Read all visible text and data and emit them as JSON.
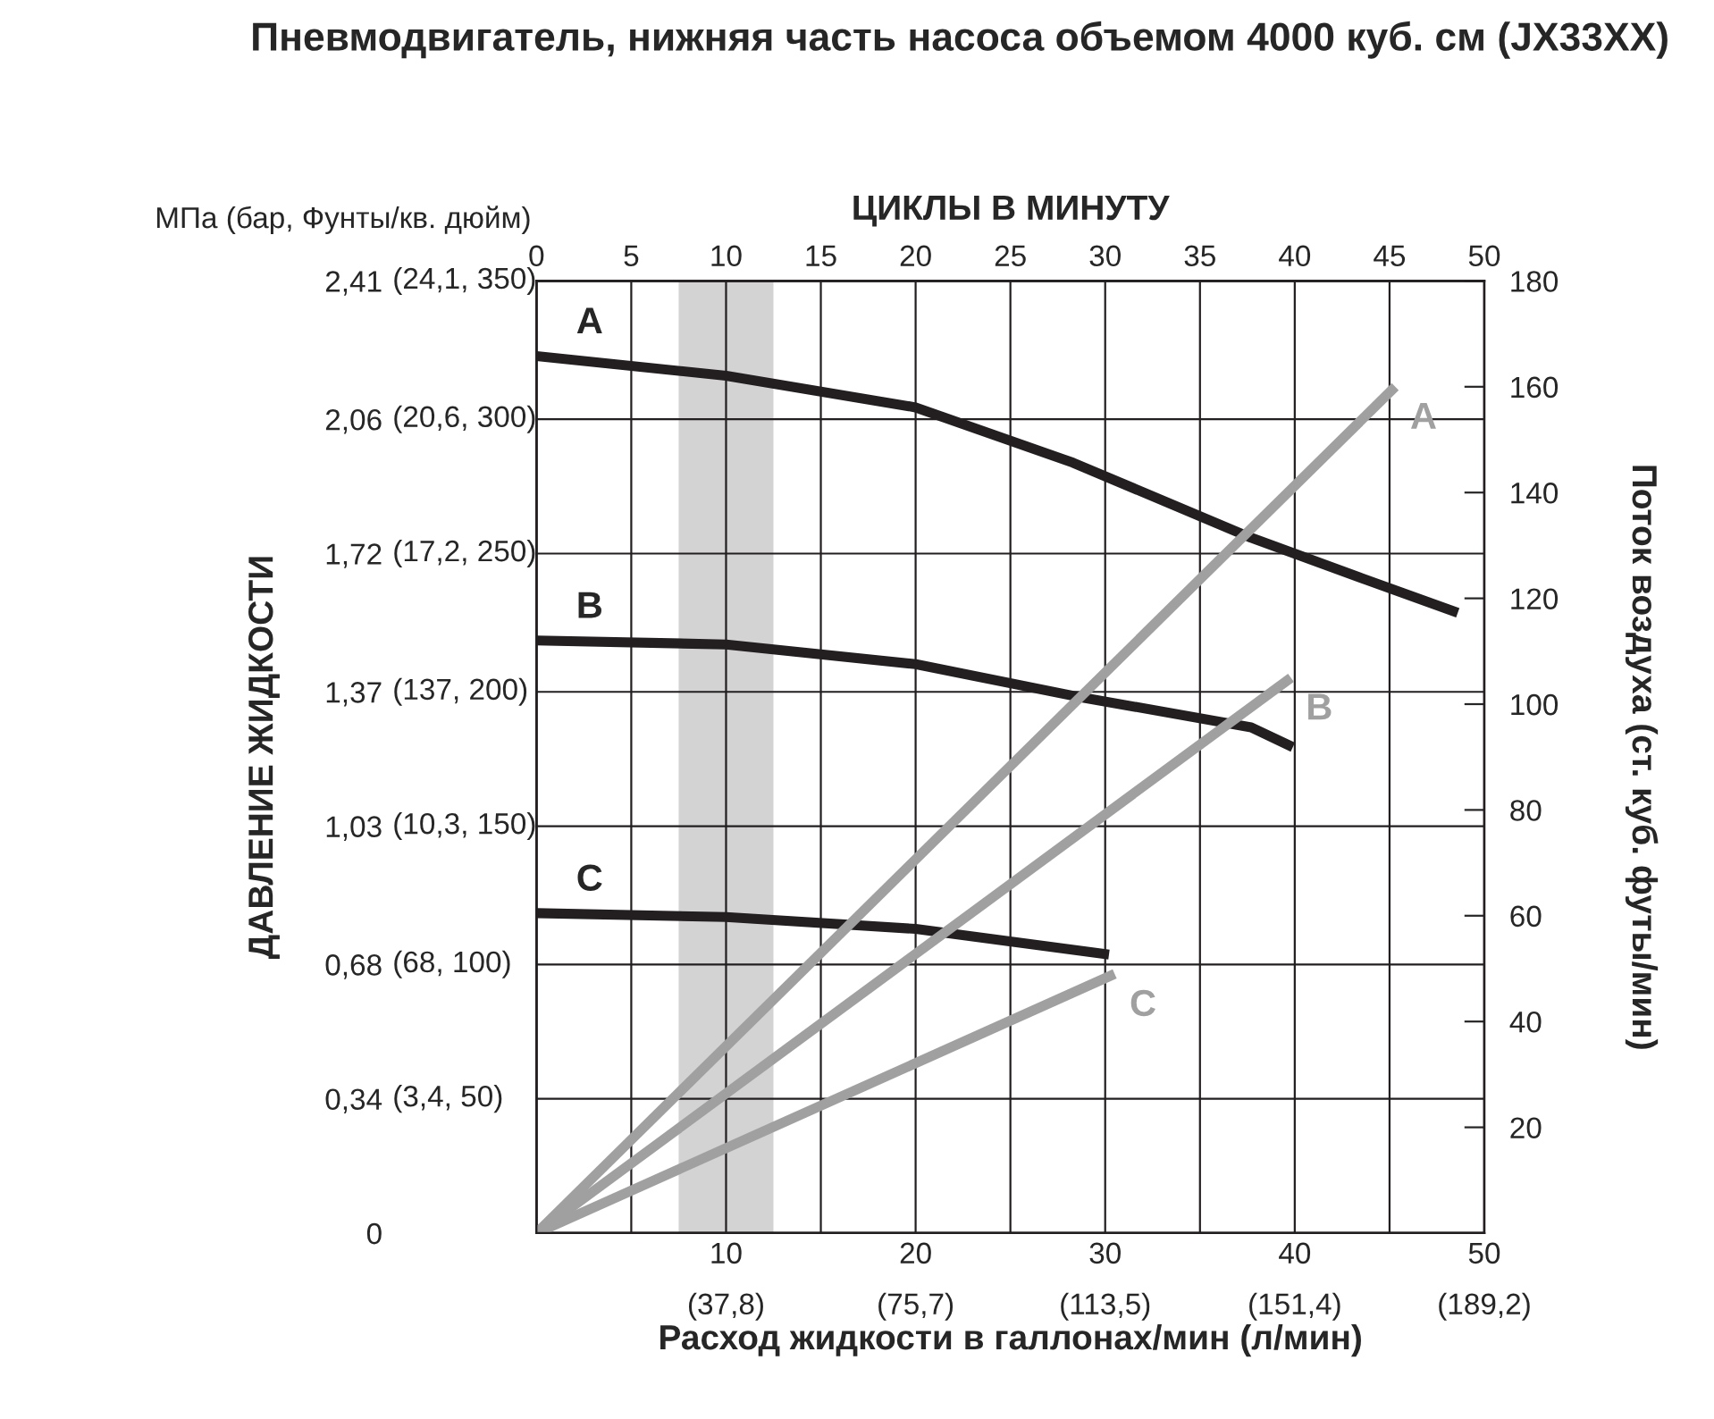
{
  "chart_data": {
    "type": "line",
    "title": "Пневмодвигатель, нижняя часть насоса объемом 4000 куб. см (JX33XX)",
    "xlabel": "Расход жидкости в галлонах/мин (л/мин)",
    "ylabel": "ДАВЛЕНИЕ ЖИДКОСТИ",
    "y2label": "Поток воздуха (ст. куб. футы/мин)",
    "x2label": "ЦИКЛЫ В МИНУТУ",
    "annotations": [
      "МПа (бар, Фунты/кв. дюйм)",
      "(37,8)",
      "(75,7)",
      "(113,5)",
      "(151,4)",
      "(189,2)",
      "(3,4, 50)",
      "(68, 100)",
      "(10,3, 150)",
      "(137, 200)",
      "(17,2, 250)",
      "(20,6, 300)",
      "(24,1, 350)"
    ],
    "xlim": [
      0,
      50
    ],
    "xticks": [
      10,
      20,
      30,
      40,
      50
    ],
    "x2lim": [
      0,
      50
    ],
    "x2ticks": [
      0,
      5,
      10,
      15,
      20,
      25,
      30,
      35,
      40,
      45,
      50
    ],
    "ylim": [
      0,
      2.41
    ],
    "yticks": [
      0,
      {
        "value": 0.34,
        "label": "0,34"
      },
      {
        "value": 0.68,
        "label": "0,68"
      },
      {
        "value": 1.03,
        "label": "1,03"
      },
      {
        "value": 1.37,
        "label": "1,37"
      },
      {
        "value": 1.72,
        "label": "1,72"
      },
      {
        "value": 2.06,
        "label": "2,06"
      },
      {
        "value": 2.41,
        "label": "2,41"
      }
    ],
    "y2lim": [
      0,
      180
    ],
    "y2ticks": [
      20,
      40,
      60,
      80,
      100,
      120,
      140,
      160,
      180
    ],
    "grid": true,
    "legend": false,
    "bands": [
      {
        "axis": "x",
        "from": 7.5,
        "to": 12.5,
        "color": "#d3d3d3"
      }
    ],
    "series": [
      {
        "name": "A",
        "color": "#231f20",
        "x": [
          0,
          10,
          20,
          28.3,
          37.7,
          43.4,
          48.6
        ],
        "values": [
          2.22,
          2.17,
          2.09,
          1.95,
          1.76,
          1.66,
          1.57
        ]
      },
      {
        "name": "B",
        "color": "#231f20",
        "x": [
          0,
          10,
          20,
          28.3,
          37.7,
          39.9
        ],
        "values": [
          1.5,
          1.49,
          1.44,
          1.36,
          1.28,
          1.23
        ]
      },
      {
        "name": "C",
        "color": "#231f20",
        "x": [
          0,
          10,
          20,
          30.2
        ],
        "values": [
          0.81,
          0.8,
          0.77,
          0.705
        ]
      },
      {
        "name": "A",
        "color": "#a0a0a0",
        "axis": "y2",
        "x": [
          0,
          45.3
        ],
        "values": [
          0,
          160
        ]
      },
      {
        "name": "B",
        "color": "#a0a0a0",
        "axis": "y2",
        "x": [
          0,
          39.8
        ],
        "values": [
          0,
          105
        ]
      },
      {
        "name": "C",
        "color": "#a0a0a0",
        "axis": "y2",
        "x": [
          0,
          30.5
        ],
        "values": [
          0,
          49
        ]
      }
    ]
  }
}
